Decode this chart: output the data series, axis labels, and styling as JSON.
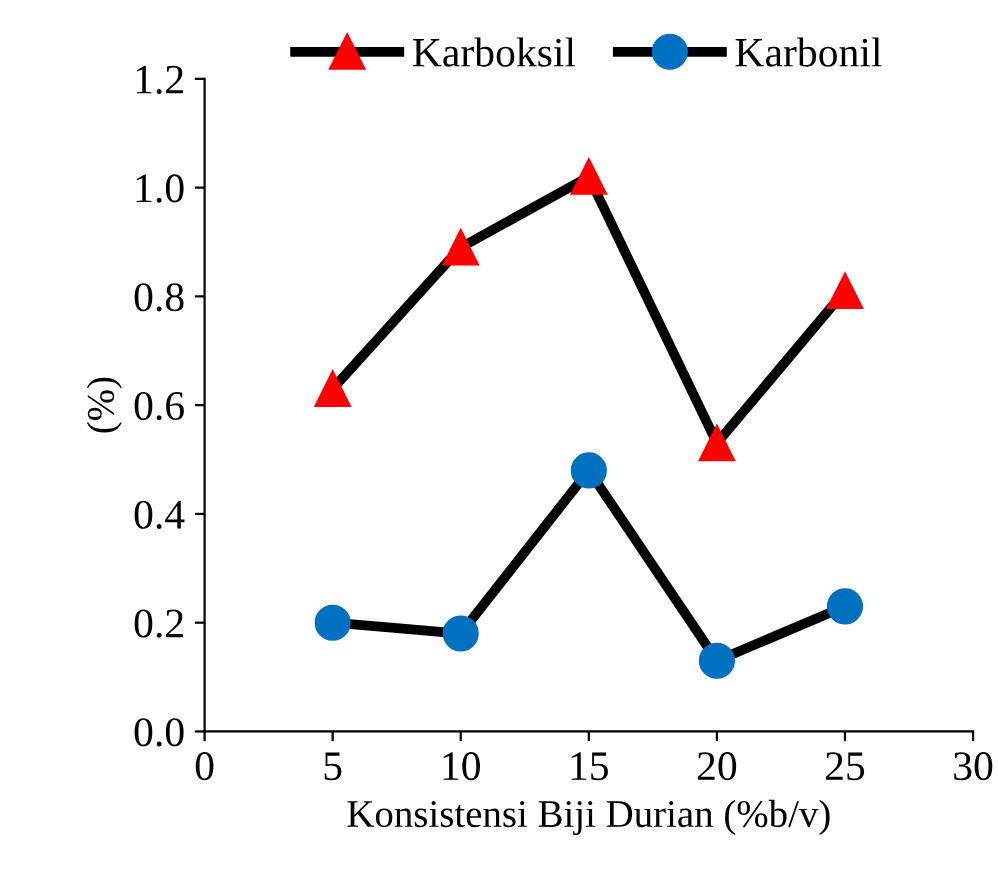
{
  "chart_data": {
    "type": "line",
    "xlabel": "Konsistensi Biji Durian (%b/v)",
    "ylabel": "(%)",
    "x": [
      5,
      10,
      15,
      20,
      25
    ],
    "series": [
      {
        "name": "Karboksil",
        "color": "#ff0000",
        "marker": "triangle",
        "values": [
          0.63,
          0.89,
          1.02,
          0.53,
          0.81
        ]
      },
      {
        "name": "Karbonil",
        "color": "#0070c0",
        "marker": "circle",
        "values": [
          0.2,
          0.18,
          0.48,
          0.13,
          0.23
        ]
      }
    ],
    "xlim": [
      0,
      30
    ],
    "xticks": [
      0,
      5,
      10,
      15,
      20,
      25,
      30
    ],
    "ylim": [
      0,
      1.2
    ],
    "yticks": [
      {
        "value": 0,
        "label": "0.0"
      },
      {
        "value": 0.2,
        "label": "0.2"
      },
      {
        "value": 0.4,
        "label": "0.4"
      },
      {
        "value": 0.6,
        "label": "0.6"
      },
      {
        "value": 0.8,
        "label": "0.8"
      },
      {
        "value": 1.0,
        "label": "1.0"
      },
      {
        "value": 1.2,
        "label": "1.2"
      }
    ],
    "grid": false,
    "legend": "top",
    "line_style": "solid"
  }
}
